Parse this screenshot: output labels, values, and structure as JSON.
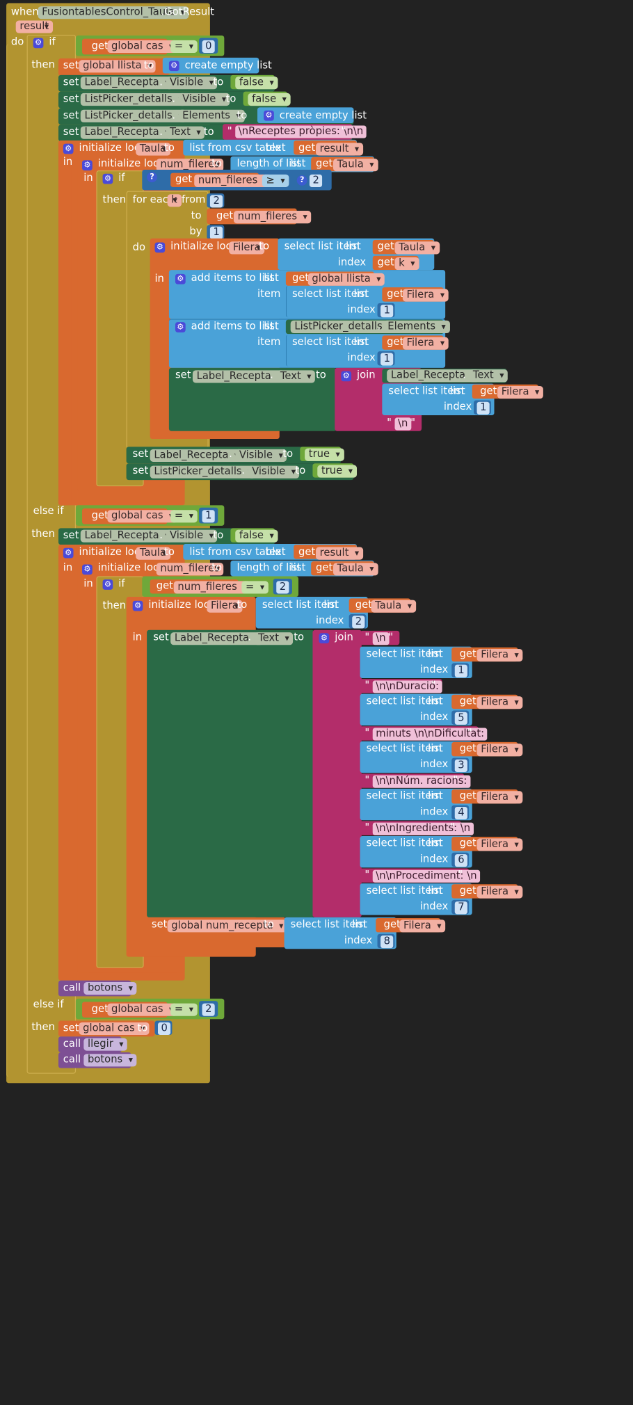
{
  "event": {
    "keyword": "when",
    "component": "FusiontablesControl_Taula",
    "event_name": ".GotResult",
    "param": "result"
  },
  "kw": {
    "do": "do",
    "if": "if",
    "then": "then",
    "else_if": "else if",
    "set": "set",
    "to": "to",
    "get": "get",
    "in": "in",
    "call": "call",
    "join": "join",
    "index": "index",
    "list": "list",
    "item": "item",
    "text": "text",
    "by": "by",
    "from": "from",
    "dot": ".",
    "quote": "\""
  },
  "icons": {
    "gear": "gear-icon",
    "help": "question-icon"
  },
  "blocks": {
    "init_local": "initialize local",
    "create_empty_list": "create empty list",
    "list_from_csv": "list from csv table",
    "length_of_list": "length of list",
    "select_list_item": "select list item",
    "add_items_to_list": "add items to list",
    "for_each": "for each",
    "equals": "=",
    "gte": "≥"
  },
  "vars": {
    "global_cas": "global cas",
    "global_llista": "global llista",
    "global_num_recepta": "global num_recepta",
    "taula": "Taula",
    "num_fileres": "num_fileres",
    "filera": "Filera",
    "k": "k",
    "result": "result"
  },
  "components": {
    "label_recepta": "Label_Recepta",
    "listpicker": "ListPicker_detalls"
  },
  "props": {
    "visible": "Visible",
    "text": "Text",
    "elements": "Elements"
  },
  "values": {
    "false": "false",
    "true": "true"
  },
  "numbers": {
    "n0": "0",
    "n1": "1",
    "n2": "2",
    "n3": "3",
    "n4": "4",
    "n5": "5",
    "n6": "6",
    "n7": "7",
    "n8": "8"
  },
  "strings": {
    "receptes": "\\nReceptes pròpies: \\n\\n",
    "nl": "\\n",
    "duracio": "\\n\\nDuració: ",
    "minuts": " minuts \\n\\nDificultat: ",
    "racions": "\\n\\nNúm. racions: ",
    "ingredients": "\\n\\nIngredients: \\n",
    "procediment": "\\n\\nProcediment: \\n"
  },
  "procedures": {
    "botons": "botons",
    "llegir": "llegir"
  }
}
